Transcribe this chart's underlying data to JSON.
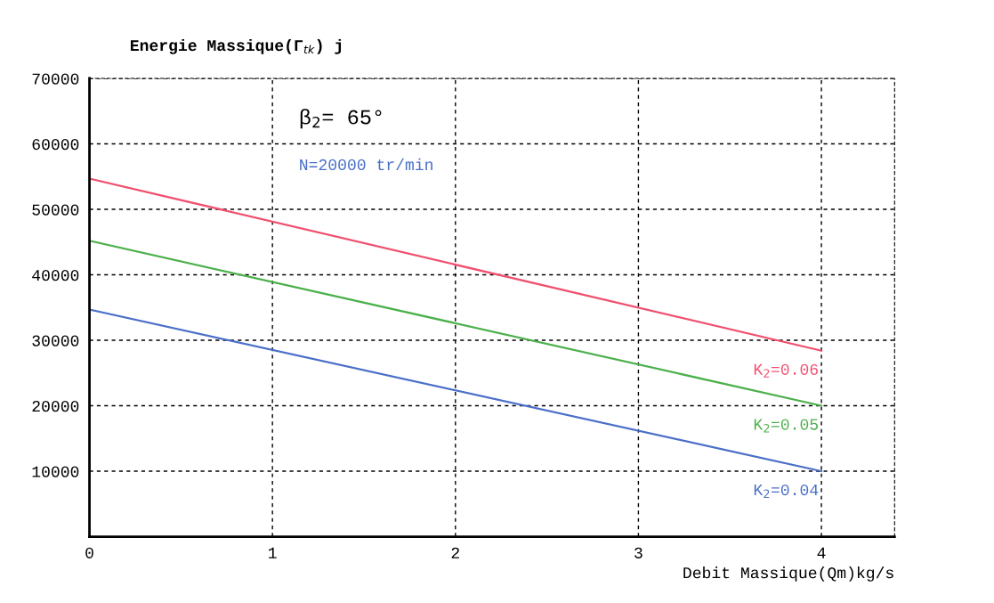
{
  "chart_data": {
    "type": "line",
    "ylabel": "Energie Massique(Γ$_{tk}$) j",
    "xlabel": "Debit Massique(Qm)kg/s",
    "annotations": [
      "β$_{2}$= 65°",
      "N=20000 tr/min"
    ],
    "x": [
      0,
      4
    ],
    "series": [
      {
        "name": "K$_{2}$=0.06",
        "color": "#f0506e",
        "values": [
          54700,
          28400
        ]
      },
      {
        "name": "K$_{2}$=0.05",
        "color": "#4cb04c",
        "values": [
          45200,
          20000
        ]
      },
      {
        "name": "K$_{2}$=0.04",
        "color": "#4a6fc8",
        "values": [
          34700,
          10000
        ]
      }
    ],
    "xlim": [
      0,
      4.4
    ],
    "ylim": [
      0,
      70000
    ],
    "xticks": [
      0,
      1,
      2,
      3,
      4
    ],
    "yticks": [
      10000,
      20000,
      30000,
      40000,
      50000,
      60000,
      70000
    ],
    "grid": true,
    "line_style": "solid",
    "marker": "none"
  }
}
